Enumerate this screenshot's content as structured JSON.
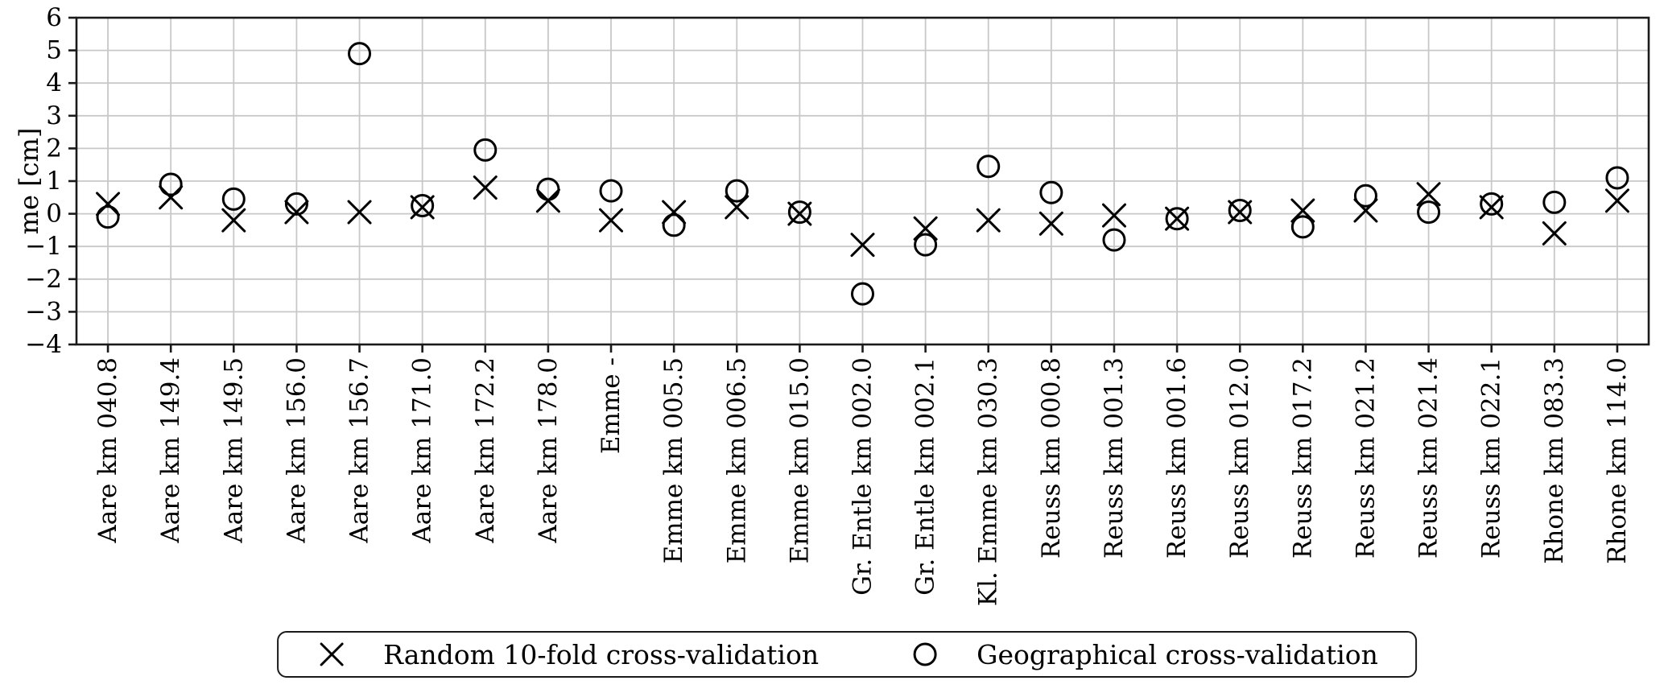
{
  "figure": {
    "background": "#ffffff"
  },
  "chart_data": {
    "type": "scatter",
    "title": "",
    "xlabel": "",
    "ylabel": "me [cm]",
    "ylim": [
      -4,
      6
    ],
    "yticks": [
      6,
      5,
      4,
      3,
      2,
      1,
      0,
      -1,
      -2,
      -3,
      -4
    ],
    "grid": true,
    "x_tick_rotation": 90,
    "legend_position": "bottom-center",
    "categories": [
      "Aare km 040.8",
      "Aare km 149.4",
      "Aare km 149.5",
      "Aare km 156.0",
      "Aare km 156.7",
      "Aare km 171.0",
      "Aare km 172.2",
      "Aare km 178.0",
      "Emme -",
      "Emme km 005.5",
      "Emme km 006.5",
      "Emme km 015.0",
      "Gr. Entle km 002.0",
      "Gr. Entle km 002.1",
      "Kl. Emme km 030.3",
      "Reuss km 000.8",
      "Reuss km 001.3",
      "Reuss km 001.6",
      "Reuss km 012.0",
      "Reuss km 017.2",
      "Reuss km 021.2",
      "Reuss km 021.4",
      "Reuss km 022.1",
      "Rhone km 083.3",
      "Rhone km 114.0"
    ],
    "series": [
      {
        "name": "Random 10-fold cross-validation",
        "marker": "x",
        "values": [
          0.3,
          0.5,
          -0.2,
          0.05,
          0.05,
          0.2,
          0.8,
          0.4,
          -0.2,
          0.05,
          0.2,
          0.0,
          -0.95,
          -0.45,
          -0.2,
          -0.3,
          -0.05,
          -0.15,
          0.05,
          0.1,
          0.1,
          0.6,
          0.2,
          -0.6,
          0.4
        ]
      },
      {
        "name": "Geographical cross-validation",
        "marker": "o",
        "values": [
          -0.1,
          0.9,
          0.45,
          0.3,
          4.9,
          0.25,
          1.95,
          0.75,
          0.7,
          -0.35,
          0.7,
          0.05,
          -2.45,
          -0.95,
          1.45,
          0.65,
          -0.8,
          -0.15,
          0.1,
          -0.4,
          0.55,
          0.05,
          0.3,
          0.35,
          1.1
        ]
      }
    ],
    "colors": {
      "marker": "#000000",
      "grid": "#c8c8c8",
      "axis": "#1a1a1a",
      "text": "#000000"
    }
  }
}
